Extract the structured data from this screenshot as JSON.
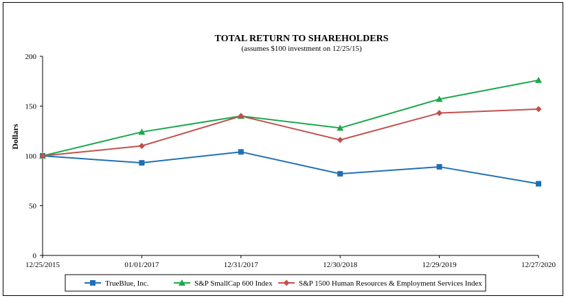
{
  "chart_data": {
    "type": "line",
    "title": "TOTAL RETURN TO SHAREHOLDERS",
    "subtitle": "(assumes $100 investment on 12/25/15)",
    "xlabel": "",
    "ylabel": "Dollars",
    "categories": [
      "12/25/2015",
      "01/01/2017",
      "12/31/2017",
      "12/30/2018",
      "12/29/2019",
      "12/27/2020"
    ],
    "ylim": [
      0,
      200
    ],
    "yticks": [
      0,
      50,
      100,
      150,
      200
    ],
    "grid": false,
    "legend_position": "bottom",
    "series": [
      {
        "name": "TrueBlue, Inc.",
        "color": "#1f6fb5",
        "marker": "square",
        "values": [
          100,
          93,
          104,
          82,
          89,
          72
        ]
      },
      {
        "name": "S&P SmallCap 600 Index",
        "color": "#19a84a",
        "marker": "triangle",
        "values": [
          100,
          124,
          140,
          128,
          157,
          176
        ]
      },
      {
        "name": "S&P 1500 Human Resources & Employment Services Index",
        "color": "#c0504d",
        "marker": "diamond",
        "values": [
          100,
          110,
          140,
          116,
          143,
          147
        ]
      }
    ]
  }
}
